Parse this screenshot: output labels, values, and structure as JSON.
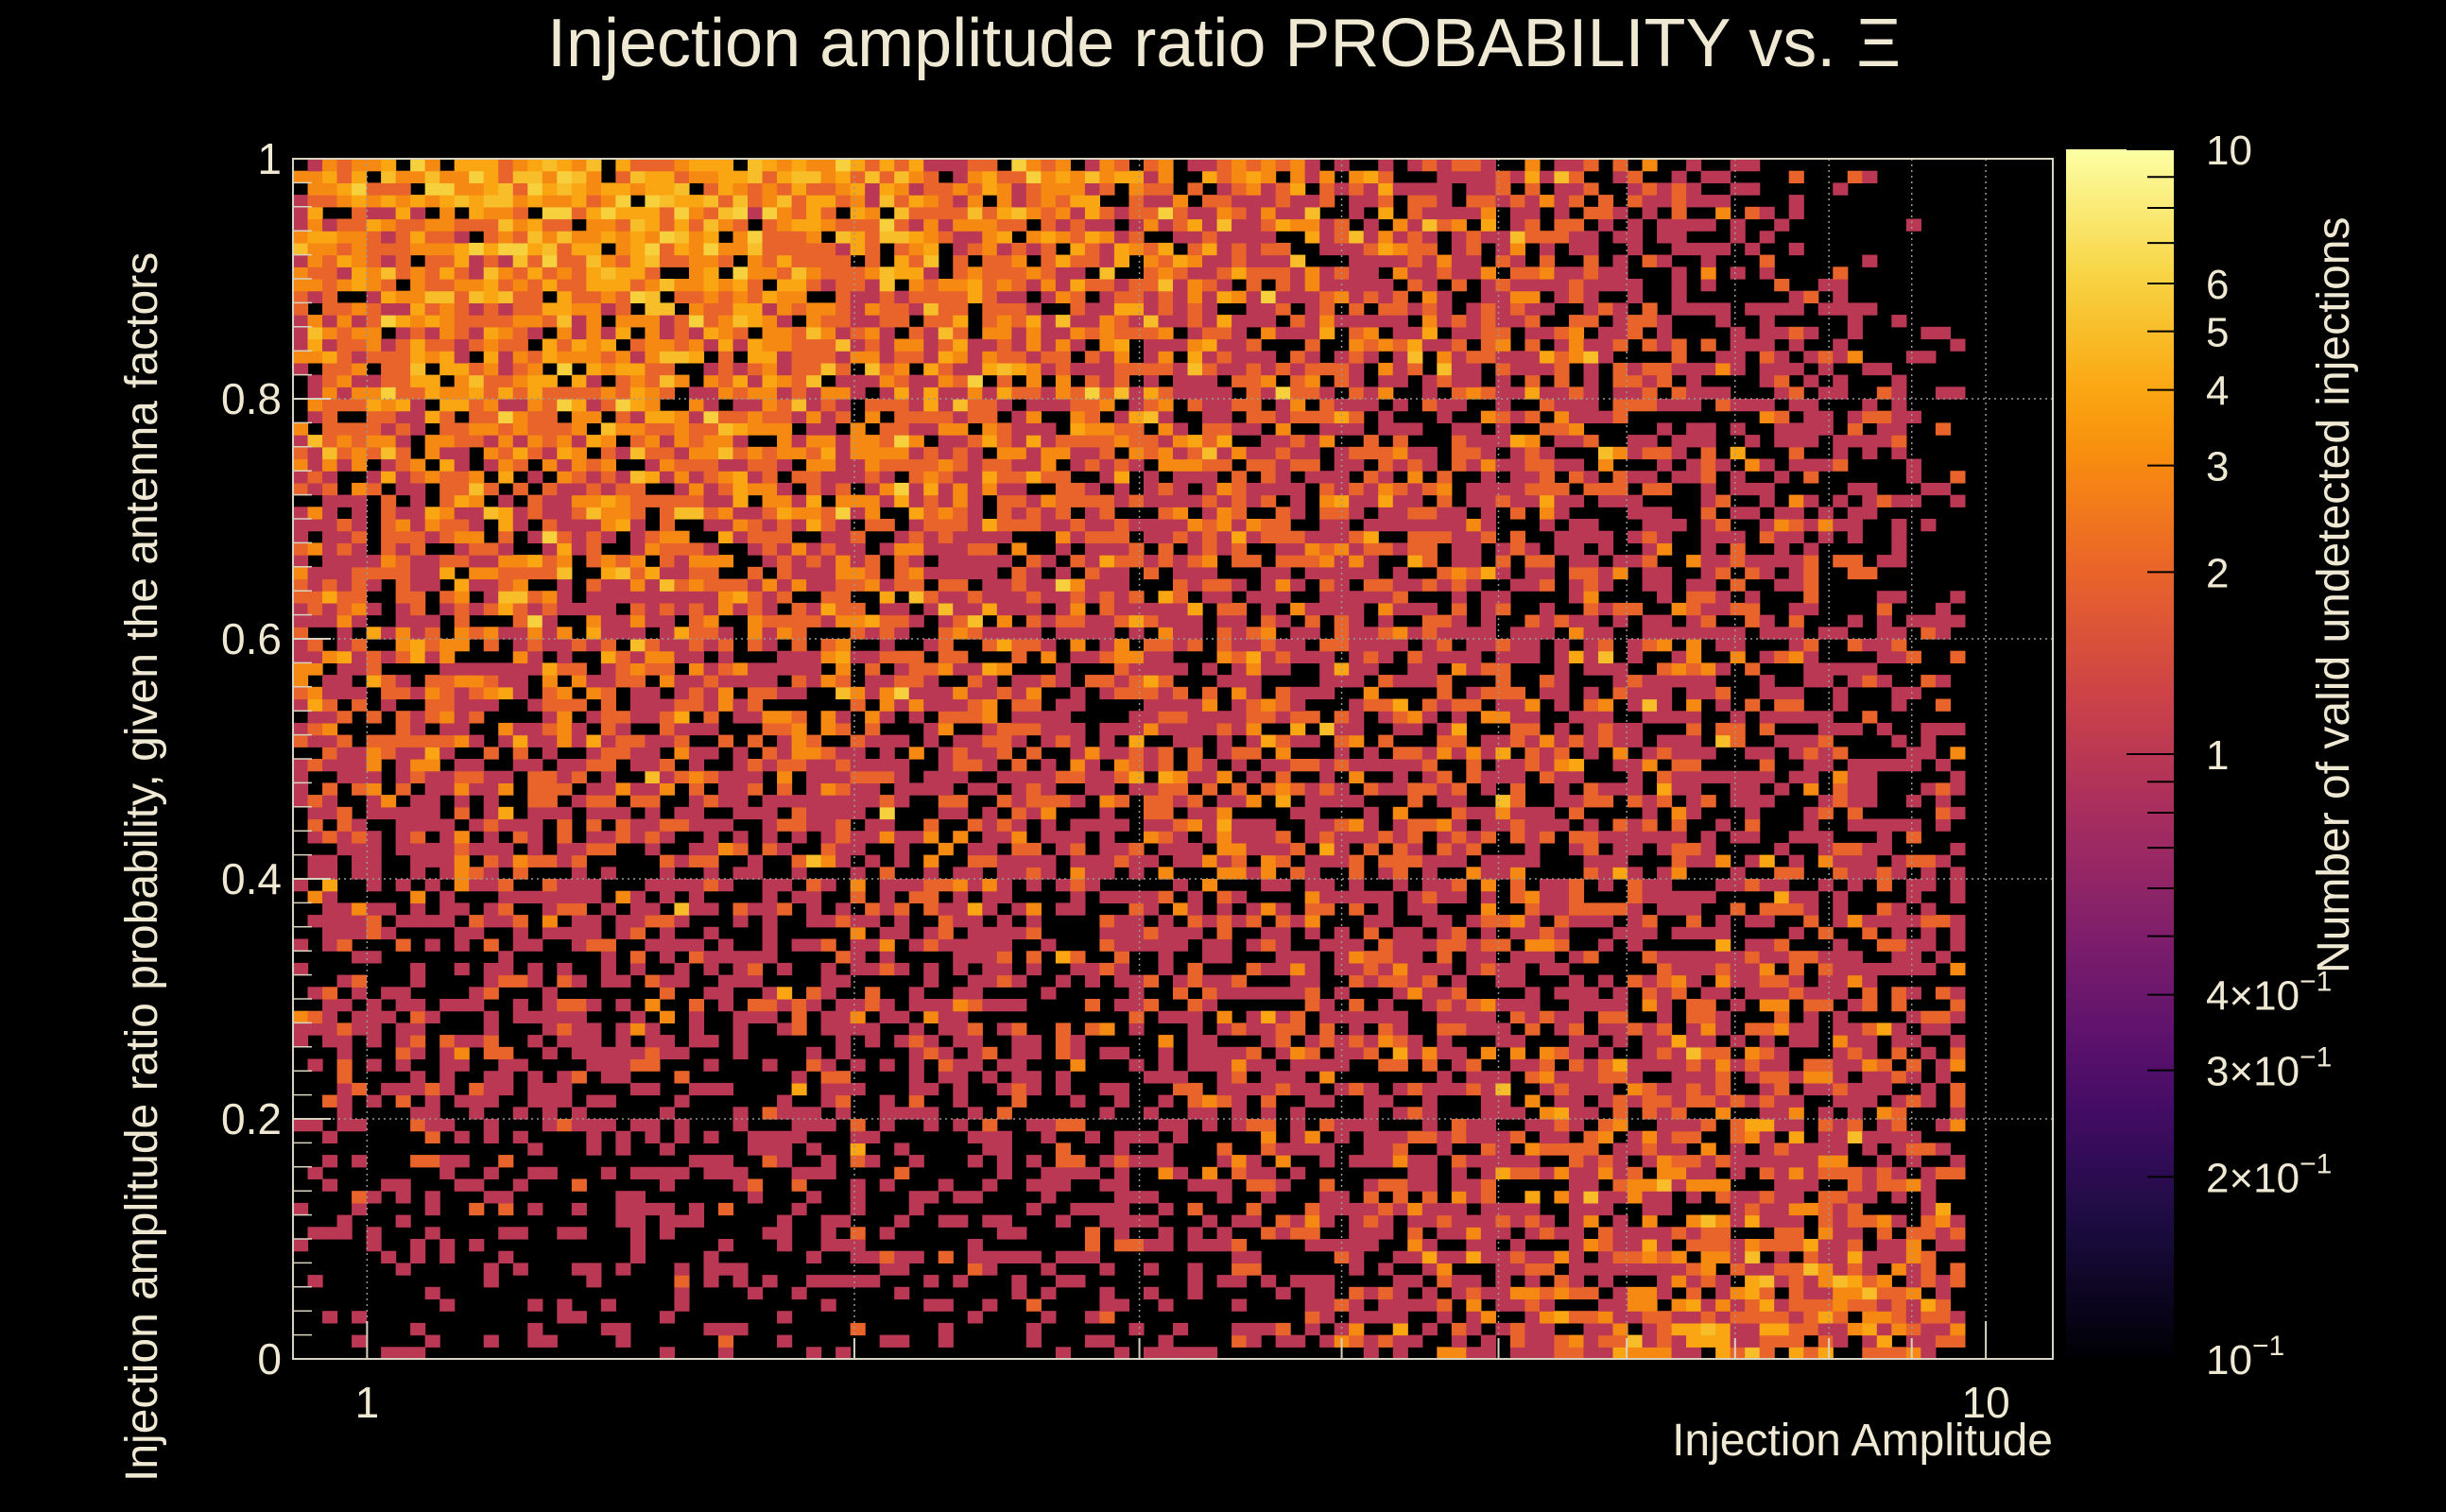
{
  "chart_data": {
    "type": "heatmap",
    "title_text": "Injection amplitude ratio PROBABILITY vs.",
    "title_symbol": "Ξ",
    "xlabel": "Injection Amplitude",
    "ylabel": "Injection amplitude ratio probability, given the antenna factors",
    "colorbar_label": "Number of valid undetected injections",
    "x_scale": "log",
    "xlim": [
      0.9,
      11
    ],
    "ylim": [
      0,
      1
    ],
    "x_ticks": [
      1,
      10
    ],
    "x_tick_labels": [
      "1",
      "10"
    ],
    "y_ticks": [
      0,
      0.2,
      0.4,
      0.6,
      0.8,
      1
    ],
    "y_tick_labels": [
      "0",
      "0.2",
      "0.4",
      "0.6",
      "0.8",
      "1"
    ],
    "grid": true,
    "colorbar_scale": "log",
    "colorbar_range": [
      0.1,
      10
    ],
    "colorbar_ticks": [
      {
        "value": 10,
        "label": "10",
        "sup": ""
      },
      {
        "value": 6,
        "label": "6",
        "sup": ""
      },
      {
        "value": 5,
        "label": "5",
        "sup": ""
      },
      {
        "value": 4,
        "label": "4",
        "sup": ""
      },
      {
        "value": 3,
        "label": "3",
        "sup": ""
      },
      {
        "value": 2,
        "label": "2",
        "sup": ""
      },
      {
        "value": 1,
        "label": "1",
        "sup": ""
      },
      {
        "value": 0.4,
        "label": "4×10",
        "sup": "−1"
      },
      {
        "value": 0.3,
        "label": "3×10",
        "sup": "−1"
      },
      {
        "value": 0.2,
        "label": "2×10",
        "sup": "−1"
      },
      {
        "value": 0.1,
        "label": "10",
        "sup": "−1"
      }
    ],
    "colormap": [
      "#000004",
      "#1b0c41",
      "#4a0c6b",
      "#781c6d",
      "#a52c60",
      "#cf4446",
      "#ed6925",
      "#fb9b06",
      "#f7d13d",
      "#fcffa4"
    ],
    "bins": {
      "nx": 120,
      "ny": 100
    },
    "density_description": "Counts of 1–4 per bin, densest at x≈1–3, y≈0.6–1; sparse at low y for small x; a second dense band at x≈5–10, y≈0–0.2"
  }
}
